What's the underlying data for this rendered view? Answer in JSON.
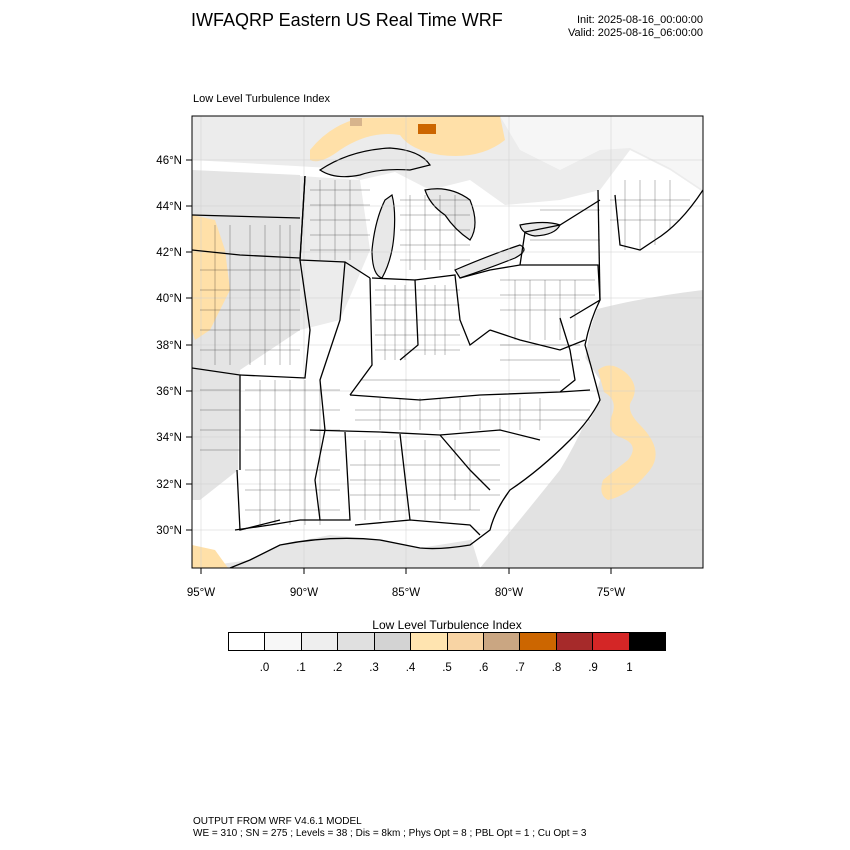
{
  "header": {
    "title": "IWFAQRP Eastern US Real Time WRF",
    "init": "Init: 2025-08-16_00:00:00",
    "valid": "Valid: 2025-08-16_06:00:00"
  },
  "map": {
    "field_name": "Low Level Turbulence Index",
    "lat_labels": [
      "46°N",
      "44°N",
      "42°N",
      "40°N",
      "38°N",
      "36°N",
      "34°N",
      "32°N",
      "30°N"
    ],
    "lon_labels": [
      "95°W",
      "90°W",
      "85°W",
      "80°W",
      "75°W"
    ],
    "colors": {
      "land_gray": "#e4e4e4",
      "land_light": "#f1f1f1",
      "ocean_gray": "#dedede",
      "tan": "#ffe0a8",
      "tan_dark": "#d7b48c",
      "orange": "#cc6600"
    }
  },
  "legend": {
    "title": "Low Level Turbulence Index",
    "colors": [
      "#ffffff",
      "#f7f7f7",
      "#eeeeee",
      "#e0e0e0",
      "#d3d3d3",
      "#ffe4b0",
      "#f8d4a4",
      "#caa682",
      "#cc6600",
      "#a62a2a",
      "#d42626",
      "#000000"
    ],
    "tick_labels": [
      ".0",
      ".1",
      ".2",
      ".3",
      ".4",
      ".5",
      ".6",
      ".7",
      ".8",
      ".9",
      "1"
    ]
  },
  "footer": {
    "line1": "OUTPUT FROM WRF V4.6.1 MODEL",
    "line2": "WE = 310 ; SN = 275 ; Levels = 38 ; Dis = 8km ; Phys Opt = 8 ; PBL Opt = 1 ; Cu Opt = 3"
  }
}
